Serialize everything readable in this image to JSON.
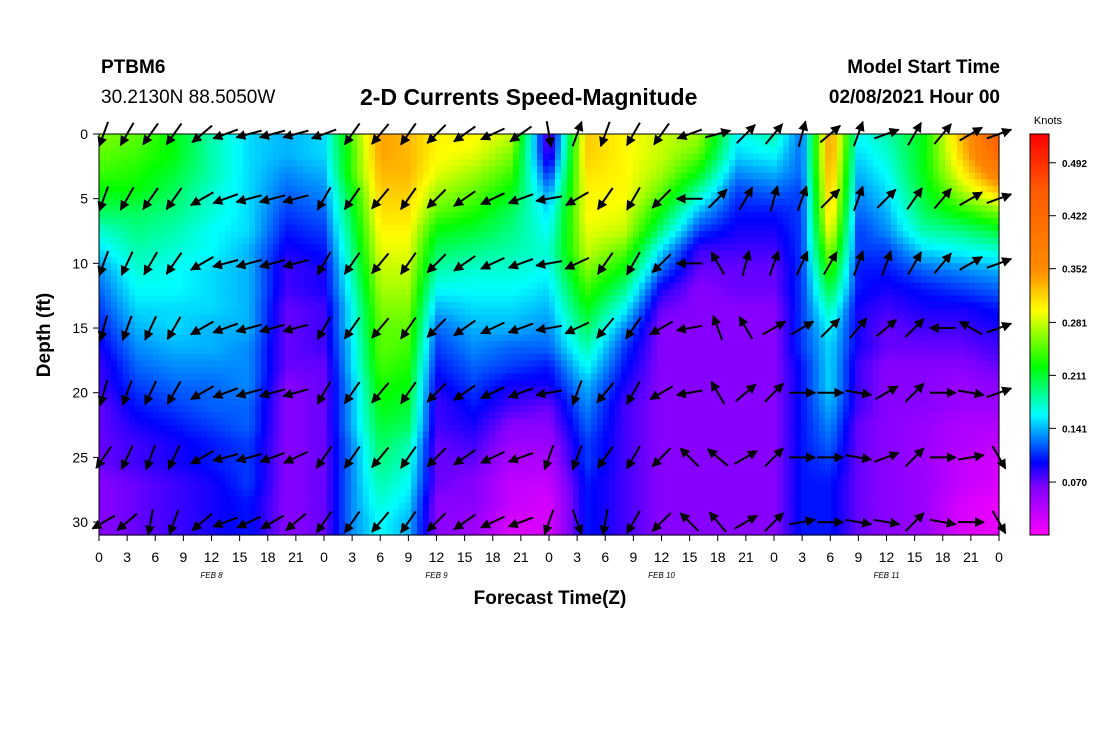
{
  "header": {
    "station": "PTBM6",
    "coords": "30.2130N 88.5050W",
    "title": "2-D Currents Speed-Magnitude",
    "model_start_label": "Model Start Time",
    "model_start_value": "02/08/2021 Hour 00"
  },
  "chart_data": {
    "type": "heatmap",
    "title": "2-D Currents Speed-Magnitude",
    "xlabel": "Forecast Time(Z)",
    "ylabel": "Depth (ft)",
    "x_ticks": [
      "0",
      "3",
      "6",
      "9",
      "12",
      "15",
      "18",
      "21",
      "0",
      "3",
      "6",
      "9",
      "12",
      "15",
      "18",
      "21",
      "0",
      "3",
      "6",
      "9",
      "12",
      "15",
      "18",
      "21",
      "0",
      "3",
      "6",
      "9",
      "12",
      "15",
      "18",
      "21",
      "0"
    ],
    "date_labels": [
      {
        "label": "FEB 8",
        "hour": 12
      },
      {
        "label": "FEB 9",
        "hour": 36
      },
      {
        "label": "FEB 10",
        "hour": 60
      },
      {
        "label": "FEB 11",
        "hour": 84
      }
    ],
    "xlim_hours": [
      0,
      96
    ],
    "y_ticks": [
      0,
      5,
      10,
      15,
      20,
      25,
      30
    ],
    "ylim": [
      0,
      31
    ],
    "y_inverted": true,
    "colorbar": {
      "unit": "Knots",
      "ticks": [
        "0.070",
        "0.141",
        "0.211",
        "0.281",
        "0.352",
        "0.422",
        "0.492"
      ],
      "range": [
        0.0,
        0.53
      ]
    },
    "depth_levels_ft": [
      0,
      1.5,
      3,
      4.5,
      6,
      7.5,
      9,
      10.5,
      12,
      13.5,
      15,
      16.5,
      18,
      19.5,
      21,
      22.5,
      24,
      25.5,
      27,
      28.5,
      30
    ],
    "speed_columns": [
      {
        "hour": 0,
        "speeds": [
          0.26,
          0.25,
          0.24,
          0.22,
          0.2,
          0.17,
          0.15,
          0.13,
          0.12,
          0.11,
          0.1,
          0.09,
          0.08,
          0.08,
          0.07,
          0.07,
          0.07,
          0.07,
          0.06,
          0.06,
          0.06
        ]
      },
      {
        "hour": 4,
        "speeds": [
          0.25,
          0.24,
          0.23,
          0.22,
          0.2,
          0.19,
          0.18,
          0.17,
          0.16,
          0.15,
          0.14,
          0.13,
          0.12,
          0.11,
          0.1,
          0.09,
          0.08,
          0.08,
          0.07,
          0.07,
          0.07
        ]
      },
      {
        "hour": 8,
        "speeds": [
          0.22,
          0.22,
          0.21,
          0.2,
          0.19,
          0.18,
          0.17,
          0.16,
          0.16,
          0.15,
          0.15,
          0.14,
          0.13,
          0.12,
          0.11,
          0.1,
          0.09,
          0.09,
          0.08,
          0.08,
          0.08
        ]
      },
      {
        "hour": 12,
        "speeds": [
          0.18,
          0.18,
          0.18,
          0.17,
          0.17,
          0.16,
          0.16,
          0.15,
          0.15,
          0.15,
          0.14,
          0.14,
          0.13,
          0.12,
          0.12,
          0.11,
          0.1,
          0.1,
          0.09,
          0.09,
          0.09
        ]
      },
      {
        "hour": 16,
        "speeds": [
          0.15,
          0.15,
          0.15,
          0.15,
          0.15,
          0.15,
          0.14,
          0.14,
          0.14,
          0.14,
          0.14,
          0.13,
          0.13,
          0.13,
          0.12,
          0.12,
          0.11,
          0.11,
          0.11,
          0.1,
          0.1
        ]
      },
      {
        "hour": 20,
        "speeds": [
          0.14,
          0.14,
          0.13,
          0.12,
          0.11,
          0.1,
          0.09,
          0.08,
          0.08,
          0.07,
          0.07,
          0.07,
          0.07,
          0.06,
          0.06,
          0.06,
          0.06,
          0.06,
          0.06,
          0.06,
          0.06
        ]
      },
      {
        "hour": 24,
        "speeds": [
          0.15,
          0.15,
          0.14,
          0.13,
          0.12,
          0.11,
          0.1,
          0.09,
          0.09,
          0.08,
          0.08,
          0.08,
          0.07,
          0.07,
          0.07,
          0.07,
          0.07,
          0.07,
          0.07,
          0.07,
          0.07
        ]
      },
      {
        "hour": 27,
        "speeds": [
          0.25,
          0.24,
          0.24,
          0.22,
          0.21,
          0.2,
          0.19,
          0.18,
          0.17,
          0.16,
          0.16,
          0.15,
          0.15,
          0.14,
          0.14,
          0.14,
          0.13,
          0.13,
          0.13,
          0.13,
          0.13
        ]
      },
      {
        "hour": 30,
        "speeds": [
          0.34,
          0.34,
          0.33,
          0.32,
          0.31,
          0.3,
          0.29,
          0.28,
          0.27,
          0.26,
          0.25,
          0.25,
          0.24,
          0.23,
          0.22,
          0.21,
          0.2,
          0.19,
          0.18,
          0.17,
          0.16
        ]
      },
      {
        "hour": 33,
        "speeds": [
          0.33,
          0.33,
          0.33,
          0.32,
          0.31,
          0.3,
          0.29,
          0.28,
          0.27,
          0.26,
          0.25,
          0.24,
          0.23,
          0.22,
          0.21,
          0.2,
          0.18,
          0.17,
          0.16,
          0.15,
          0.14
        ]
      },
      {
        "hour": 36,
        "speeds": [
          0.3,
          0.3,
          0.29,
          0.27,
          0.25,
          0.22,
          0.2,
          0.18,
          0.16,
          0.14,
          0.12,
          0.11,
          0.1,
          0.09,
          0.08,
          0.08,
          0.07,
          0.07,
          0.07,
          0.06,
          0.06
        ]
      },
      {
        "hour": 40,
        "speeds": [
          0.3,
          0.29,
          0.27,
          0.25,
          0.23,
          0.21,
          0.19,
          0.17,
          0.16,
          0.15,
          0.14,
          0.13,
          0.12,
          0.11,
          0.1,
          0.09,
          0.08,
          0.07,
          0.06,
          0.06,
          0.05
        ]
      },
      {
        "hour": 44,
        "speeds": [
          0.28,
          0.26,
          0.24,
          0.22,
          0.2,
          0.19,
          0.18,
          0.17,
          0.16,
          0.15,
          0.14,
          0.12,
          0.11,
          0.09,
          0.08,
          0.06,
          0.05,
          0.04,
          0.03,
          0.03,
          0.02
        ]
      },
      {
        "hour": 48,
        "speeds": [
          0.06,
          0.07,
          0.1,
          0.13,
          0.15,
          0.16,
          0.17,
          0.16,
          0.15,
          0.14,
          0.13,
          0.12,
          0.1,
          0.09,
          0.07,
          0.06,
          0.05,
          0.04,
          0.03,
          0.02,
          0.02
        ]
      },
      {
        "hour": 52,
        "speeds": [
          0.32,
          0.32,
          0.31,
          0.3,
          0.3,
          0.29,
          0.28,
          0.26,
          0.24,
          0.22,
          0.2,
          0.18,
          0.16,
          0.14,
          0.13,
          0.12,
          0.11,
          0.11,
          0.1,
          0.1,
          0.1
        ]
      },
      {
        "hour": 56,
        "speeds": [
          0.3,
          0.3,
          0.3,
          0.3,
          0.29,
          0.28,
          0.25,
          0.22,
          0.19,
          0.16,
          0.13,
          0.11,
          0.1,
          0.09,
          0.08,
          0.08,
          0.08,
          0.08,
          0.08,
          0.08,
          0.08
        ]
      },
      {
        "hour": 60,
        "speeds": [
          0.28,
          0.28,
          0.27,
          0.25,
          0.22,
          0.19,
          0.15,
          0.12,
          0.09,
          0.07,
          0.06,
          0.06,
          0.06,
          0.06,
          0.06,
          0.06,
          0.06,
          0.06,
          0.06,
          0.06,
          0.06
        ]
      },
      {
        "hour": 64,
        "speeds": [
          0.27,
          0.25,
          0.22,
          0.18,
          0.14,
          0.11,
          0.08,
          0.07,
          0.06,
          0.06,
          0.06,
          0.06,
          0.06,
          0.06,
          0.06,
          0.06,
          0.06,
          0.06,
          0.06,
          0.06,
          0.06
        ]
      },
      {
        "hour": 68,
        "speeds": [
          0.16,
          0.15,
          0.13,
          0.11,
          0.1,
          0.09,
          0.08,
          0.07,
          0.07,
          0.06,
          0.06,
          0.06,
          0.06,
          0.06,
          0.06,
          0.06,
          0.06,
          0.06,
          0.06,
          0.06,
          0.06
        ]
      },
      {
        "hour": 72,
        "speeds": [
          0.18,
          0.16,
          0.14,
          0.12,
          0.1,
          0.09,
          0.08,
          0.07,
          0.07,
          0.06,
          0.06,
          0.06,
          0.06,
          0.06,
          0.06,
          0.06,
          0.06,
          0.06,
          0.06,
          0.06,
          0.06
        ]
      },
      {
        "hour": 75,
        "speeds": [
          0.12,
          0.12,
          0.12,
          0.11,
          0.11,
          0.11,
          0.11,
          0.11,
          0.11,
          0.11,
          0.11,
          0.11,
          0.1,
          0.1,
          0.1,
          0.1,
          0.1,
          0.1,
          0.1,
          0.1,
          0.1
        ]
      },
      {
        "hour": 78,
        "speeds": [
          0.35,
          0.35,
          0.34,
          0.33,
          0.32,
          0.3,
          0.27,
          0.24,
          0.21,
          0.18,
          0.16,
          0.15,
          0.15,
          0.15,
          0.14,
          0.13,
          0.12,
          0.11,
          0.1,
          0.1,
          0.1
        ]
      },
      {
        "hour": 81,
        "speeds": [
          0.16,
          0.15,
          0.14,
          0.13,
          0.12,
          0.11,
          0.11,
          0.1,
          0.1,
          0.09,
          0.09,
          0.09,
          0.08,
          0.08,
          0.08,
          0.07,
          0.07,
          0.07,
          0.07,
          0.07,
          0.07
        ]
      },
      {
        "hour": 84,
        "speeds": [
          0.18,
          0.17,
          0.16,
          0.15,
          0.14,
          0.13,
          0.11,
          0.1,
          0.09,
          0.08,
          0.07,
          0.07,
          0.06,
          0.06,
          0.06,
          0.06,
          0.06,
          0.06,
          0.06,
          0.06,
          0.06
        ]
      },
      {
        "hour": 88,
        "speeds": [
          0.22,
          0.22,
          0.22,
          0.21,
          0.2,
          0.18,
          0.15,
          0.12,
          0.1,
          0.09,
          0.08,
          0.07,
          0.06,
          0.06,
          0.06,
          0.05,
          0.05,
          0.05,
          0.05,
          0.05,
          0.05
        ]
      },
      {
        "hour": 92,
        "speeds": [
          0.33,
          0.32,
          0.3,
          0.27,
          0.23,
          0.19,
          0.16,
          0.13,
          0.11,
          0.09,
          0.08,
          0.07,
          0.06,
          0.05,
          0.05,
          0.04,
          0.04,
          0.03,
          0.03,
          0.02,
          0.02
        ]
      },
      {
        "hour": 96,
        "speeds": [
          0.45,
          0.43,
          0.38,
          0.32,
          0.26,
          0.21,
          0.17,
          0.14,
          0.12,
          0.1,
          0.09,
          0.08,
          0.07,
          0.06,
          0.05,
          0.04,
          0.03,
          0.02,
          0.02,
          0.01,
          0.01
        ]
      }
    ],
    "arrow_hours": [
      0.5,
      3,
      5.5,
      8,
      11,
      13.5,
      16,
      18.5,
      21,
      24,
      27,
      30,
      33,
      36,
      39,
      42,
      45,
      48,
      51,
      54,
      57,
      60,
      63,
      66,
      69,
      72,
      75,
      78,
      81,
      84,
      87,
      90,
      93,
      96
    ],
    "arrow_depths_ft": [
      0,
      5,
      10,
      15,
      20,
      25,
      30
    ],
    "arrow_directions_deg": [
      [
        200,
        210,
        215,
        215,
        230,
        250,
        255,
        255,
        255,
        250,
        215,
        220,
        215,
        225,
        235,
        245,
        235,
        170,
        20,
        200,
        210,
        215,
        250,
        75,
        45,
        40,
        15,
        50,
        20,
        70,
        30,
        40,
        60,
        70
      ],
      [
        200,
        210,
        215,
        215,
        240,
        250,
        255,
        255,
        255,
        210,
        215,
        220,
        215,
        225,
        235,
        245,
        250,
        260,
        240,
        215,
        210,
        225,
        270,
        45,
        30,
        15,
        20,
        45,
        20,
        45,
        35,
        40,
        60,
        70
      ],
      [
        200,
        205,
        210,
        215,
        240,
        255,
        255,
        255,
        255,
        210,
        215,
        220,
        215,
        225,
        235,
        245,
        250,
        260,
        245,
        215,
        210,
        225,
        270,
        330,
        15,
        20,
        25,
        30,
        20,
        20,
        30,
        40,
        60,
        70
      ],
      [
        195,
        200,
        205,
        210,
        240,
        250,
        255,
        255,
        255,
        210,
        215,
        220,
        215,
        225,
        235,
        245,
        250,
        260,
        245,
        220,
        215,
        240,
        260,
        340,
        330,
        60,
        60,
        45,
        40,
        50,
        45,
        270,
        300,
        70
      ],
      [
        195,
        200,
        205,
        210,
        240,
        250,
        255,
        255,
        255,
        210,
        215,
        220,
        215,
        225,
        235,
        245,
        250,
        260,
        200,
        220,
        210,
        240,
        260,
        330,
        50,
        45,
        90,
        90,
        100,
        60,
        45,
        90,
        100,
        70
      ],
      [
        215,
        205,
        200,
        205,
        240,
        255,
        255,
        250,
        245,
        215,
        215,
        220,
        215,
        225,
        235,
        245,
        250,
        200,
        200,
        215,
        210,
        225,
        315,
        310,
        60,
        45,
        90,
        90,
        100,
        70,
        45,
        90,
        80,
        150
      ],
      [
        240,
        230,
        190,
        200,
        230,
        250,
        245,
        240,
        230,
        215,
        215,
        220,
        215,
        225,
        235,
        245,
        250,
        200,
        160,
        190,
        210,
        225,
        315,
        320,
        60,
        45,
        80,
        90,
        100,
        100,
        45,
        100,
        90,
        150
      ]
    ]
  }
}
